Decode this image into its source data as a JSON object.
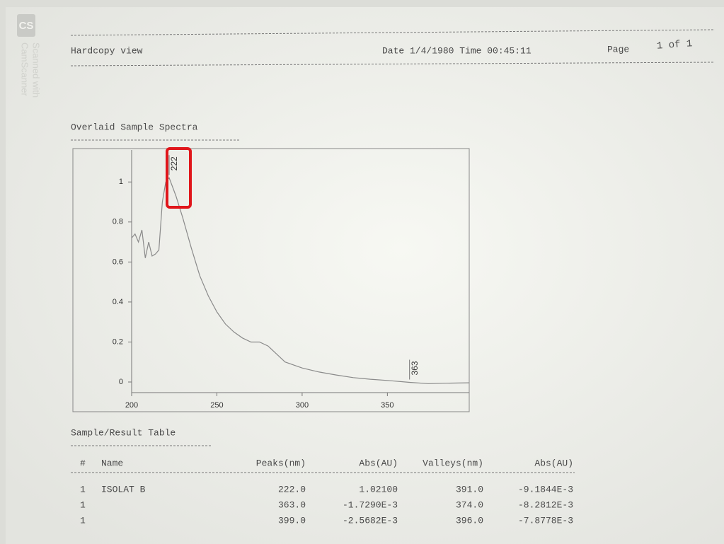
{
  "watermark": {
    "logo": "CS",
    "lines": [
      "Scanned with",
      "CamScanner"
    ]
  },
  "header": {
    "title": "Hardcopy view",
    "date": "Date 1/4/1980 Time 00:45:11",
    "page_label": "Page",
    "page_number": "1 of 1"
  },
  "section_title": "Overlaid Sample Spectra",
  "chart_data": {
    "type": "line",
    "x": [
      200,
      202,
      204,
      206,
      208,
      210,
      212,
      214,
      216,
      218,
      220,
      222,
      226,
      230,
      235,
      240,
      245,
      250,
      255,
      260,
      265,
      270,
      275,
      280,
      285,
      290,
      300,
      310,
      320,
      330,
      340,
      350,
      363,
      374,
      385,
      398
    ],
    "values": [
      0.72,
      0.74,
      0.7,
      0.76,
      0.62,
      0.7,
      0.63,
      0.64,
      0.66,
      0.9,
      1.0,
      1.021,
      0.93,
      0.82,
      0.67,
      0.53,
      0.43,
      0.35,
      0.29,
      0.25,
      0.22,
      0.2,
      0.2,
      0.18,
      0.14,
      0.1,
      0.07,
      0.05,
      0.035,
      0.022,
      0.014,
      0.008,
      -0.0017,
      -0.008,
      -0.006,
      -0.004
    ],
    "color": "#8a8a8a",
    "xlim": [
      200,
      398
    ],
    "ylim": [
      -0.053,
      1.16
    ],
    "xticks": [
      200,
      250,
      300,
      350
    ],
    "yticks": [
      0,
      0.2,
      0.4,
      0.6,
      0.8,
      1
    ],
    "annotations": [
      {
        "label": "222",
        "x": 222
      },
      {
        "label": "363",
        "x": 363
      }
    ]
  },
  "table": {
    "title": "Sample/Result Table",
    "columns": [
      "#",
      "Name",
      "Peaks(nm)",
      "Abs(AU)",
      "Valleys(nm)",
      "Abs(AU)"
    ],
    "rows": [
      [
        "1",
        "ISOLAT B",
        "222.0",
        "1.02100",
        "391.0",
        "-9.1844E-3"
      ],
      [
        "1",
        "",
        "363.0",
        "-1.7290E-3",
        "374.0",
        "-8.2812E-3"
      ],
      [
        "1",
        "",
        "399.0",
        "-2.5682E-3",
        "396.0",
        "-7.8778E-3"
      ]
    ]
  }
}
